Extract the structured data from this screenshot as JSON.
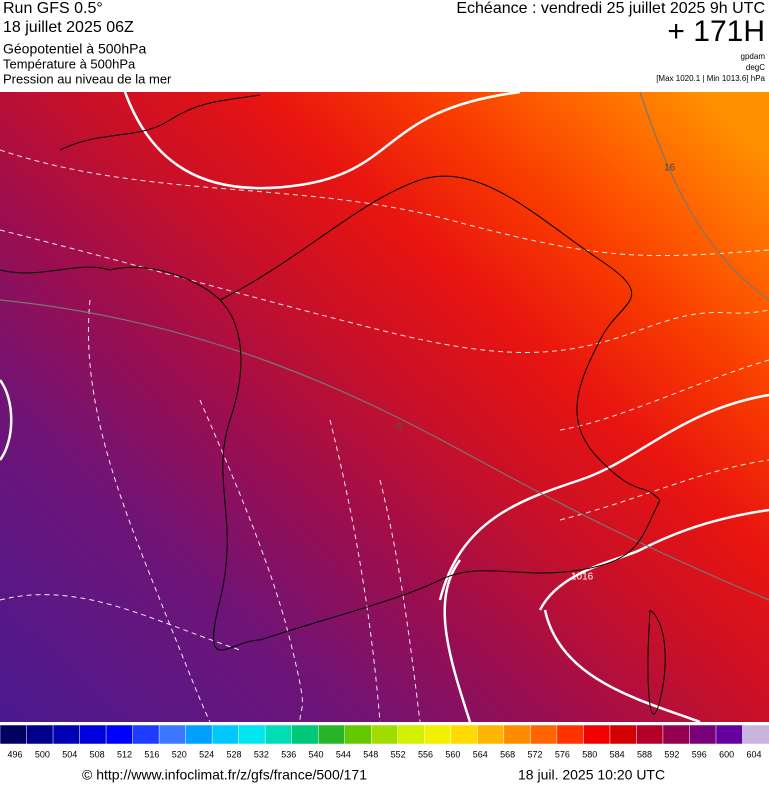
{
  "header": {
    "left": [
      "Run GFS 0.5°",
      "18 juillet 2025 06Z",
      "Géopotentiel à 500hPa",
      "Température à 500hPa",
      "Pression au niveau de la mer"
    ],
    "right": {
      "title": "Echéance : vendredi 25 juillet 2025 9h UTC",
      "lead": "+ 171H",
      "units": [
        "gpdam",
        "degC",
        "[Max 1020.1 | Min 1013.6] hPa"
      ]
    }
  },
  "map": {
    "labels": [
      "16",
      "1016",
      "-8"
    ]
  },
  "colorbar": {
    "ticks": [
      496,
      500,
      504,
      508,
      512,
      516,
      520,
      524,
      528,
      532,
      536,
      540,
      544,
      548,
      552,
      556,
      560,
      564,
      568,
      572,
      576,
      580,
      584,
      588,
      592,
      596,
      600,
      604
    ],
    "colors": [
      "#000060",
      "#00008c",
      "#0000b4",
      "#0000dc",
      "#0000ff",
      "#1e3cff",
      "#3c78ff",
      "#00a0ff",
      "#00c8ff",
      "#00e6f0",
      "#00dcb4",
      "#00c878",
      "#28b428",
      "#64c800",
      "#a0dc00",
      "#d2f000",
      "#f0f000",
      "#ffdc00",
      "#ffb400",
      "#ff8c00",
      "#ff6400",
      "#ff3200",
      "#f00000",
      "#d20000",
      "#b40028",
      "#960050",
      "#780078",
      "#6400a0",
      "#c8b4dc"
    ]
  },
  "footer": {
    "source": "© http://www.infoclimat.fr/z/gfs/france/500/171",
    "date": "18 juil. 2025 10:20 UTC"
  }
}
